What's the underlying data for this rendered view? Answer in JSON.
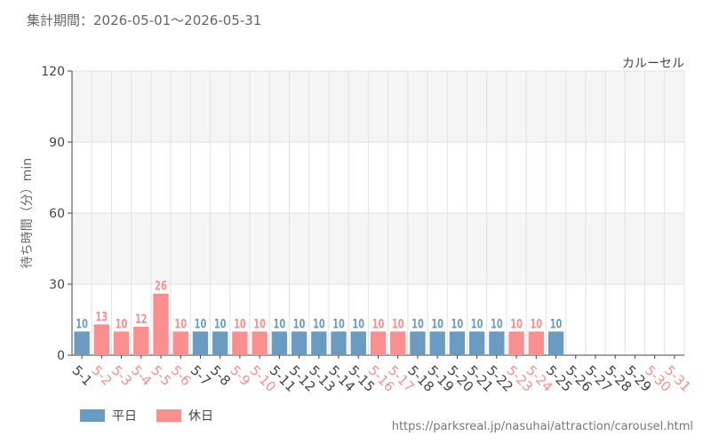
{
  "header": {
    "period": "集計期間：2026-05-01～2026-05-31"
  },
  "footer": {
    "source": "https://parksreal.jp/nasuhai/attraction/carousel.html"
  },
  "colors": {
    "weekday": "#6a9bc3",
    "holiday": "#fb8e8f",
    "grid": "#e2e2e2",
    "band": "#f5f5f5",
    "axis": "#444444"
  },
  "chart_data": {
    "type": "bar",
    "title": "カルーセル",
    "xlabel": "",
    "ylabel": "待ち時間（分）min",
    "ylim": [
      0,
      120
    ],
    "yticks": [
      0,
      30,
      60,
      90,
      120
    ],
    "grid": true,
    "legend_position": "bottom-left",
    "categories": [
      "5-1",
      "5-2",
      "5-3",
      "5-4",
      "5-5",
      "5-6",
      "5-7",
      "5-8",
      "5-9",
      "5-10",
      "5-11",
      "5-12",
      "5-13",
      "5-14",
      "5-15",
      "5-16",
      "5-17",
      "5-18",
      "5-19",
      "5-20",
      "5-21",
      "5-22",
      "5-23",
      "5-24",
      "5-25",
      "5-26",
      "5-27",
      "5-28",
      "5-29",
      "5-30",
      "5-31"
    ],
    "values": [
      10,
      13,
      10,
      12,
      26,
      10,
      10,
      10,
      10,
      10,
      10,
      10,
      10,
      10,
      10,
      10,
      10,
      10,
      10,
      10,
      10,
      10,
      10,
      10,
      10,
      null,
      null,
      null,
      null,
      null,
      null
    ],
    "day_type": [
      "weekday",
      "holiday",
      "holiday",
      "holiday",
      "holiday",
      "holiday",
      "weekday",
      "weekday",
      "holiday",
      "holiday",
      "weekday",
      "weekday",
      "weekday",
      "weekday",
      "weekday",
      "holiday",
      "holiday",
      "weekday",
      "weekday",
      "weekday",
      "weekday",
      "weekday",
      "holiday",
      "holiday",
      "weekday",
      "weekday",
      "weekday",
      "weekday",
      "weekday",
      "holiday",
      "holiday"
    ],
    "series": [
      {
        "name": "平日",
        "key": "weekday"
      },
      {
        "name": "休日",
        "key": "holiday"
      }
    ]
  }
}
